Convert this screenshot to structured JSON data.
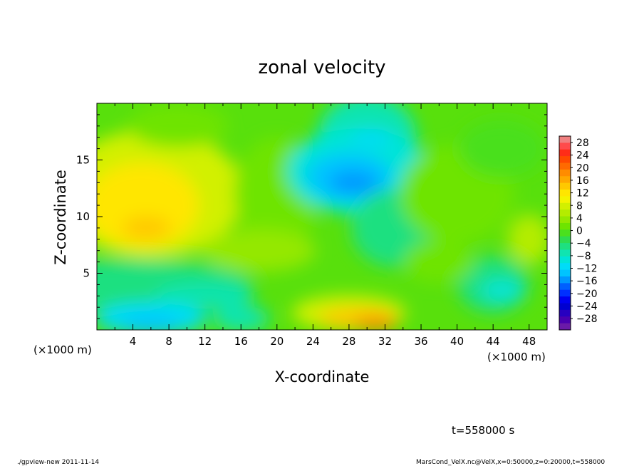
{
  "chart_data": {
    "type": "heatmap",
    "title": "zonal velocity",
    "xlabel": "X-coordinate",
    "ylabel": "Z-coordinate",
    "x_unit_label": "(×1000 m)",
    "y_unit_label": "(×1000 m)",
    "xlim": [
      0,
      50
    ],
    "ylim": [
      0,
      20
    ],
    "x_ticks": [
      4,
      8,
      12,
      16,
      20,
      24,
      28,
      32,
      36,
      40,
      44,
      48
    ],
    "y_ticks": [
      5,
      10,
      15
    ],
    "colorbar": {
      "labels": [
        "28",
        "24",
        "20",
        "16",
        "12",
        "8",
        "4",
        "0",
        "−4",
        "−8",
        "−12",
        "−16",
        "−20",
        "−24",
        "−28"
      ],
      "levels": [
        {
          "value": 28,
          "color": "#f08080"
        },
        {
          "value": 26,
          "color": "#ff4b4b"
        },
        {
          "value": 24,
          "color": "#ff2d18"
        },
        {
          "value": 22,
          "color": "#ff4a00"
        },
        {
          "value": 20,
          "color": "#ff6a00"
        },
        {
          "value": 18,
          "color": "#ff8c00"
        },
        {
          "value": 16,
          "color": "#ffa800"
        },
        {
          "value": 14,
          "color": "#ffc800"
        },
        {
          "value": 12,
          "color": "#ffe600"
        },
        {
          "value": 10,
          "color": "#f4f400"
        },
        {
          "value": 8,
          "color": "#d2f000"
        },
        {
          "value": 6,
          "color": "#b4ec00"
        },
        {
          "value": 4,
          "color": "#94e800"
        },
        {
          "value": 2,
          "color": "#6ee400"
        },
        {
          "value": 0,
          "color": "#4ae01e"
        },
        {
          "value": -2,
          "color": "#2edc50"
        },
        {
          "value": -4,
          "color": "#1ee080"
        },
        {
          "value": -6,
          "color": "#10e4b0"
        },
        {
          "value": -8,
          "color": "#00e4d8"
        },
        {
          "value": -10,
          "color": "#00dcf8"
        },
        {
          "value": -12,
          "color": "#00c4ff"
        },
        {
          "value": -14,
          "color": "#0098ff"
        },
        {
          "value": -16,
          "color": "#0060ff"
        },
        {
          "value": -18,
          "color": "#0030ff"
        },
        {
          "value": -20,
          "color": "#0000f0"
        },
        {
          "value": -22,
          "color": "#0000d0"
        },
        {
          "value": -24,
          "color": "#2800c0"
        },
        {
          "value": -26,
          "color": "#4a00b0"
        },
        {
          "value": -28,
          "color": "#6a1aa8"
        }
      ]
    },
    "features": [
      {
        "x": 6,
        "z": 9,
        "value": 11
      },
      {
        "x": 6,
        "z": 12,
        "value": 10
      },
      {
        "x": 28,
        "z": 13.5,
        "value": -14
      },
      {
        "x": 30,
        "z": 1,
        "value": 16
      },
      {
        "x": 6,
        "z": 0.5,
        "value": -13
      },
      {
        "x": 45,
        "z": 4,
        "value": -9
      }
    ]
  },
  "annotation": {
    "time_label": "t=558000 s"
  },
  "footer": {
    "left": "./gpview-new   2011-11-14",
    "right": "MarsCond_VelX.nc@VelX,x=0:50000,z=0:20000,t=558000"
  }
}
